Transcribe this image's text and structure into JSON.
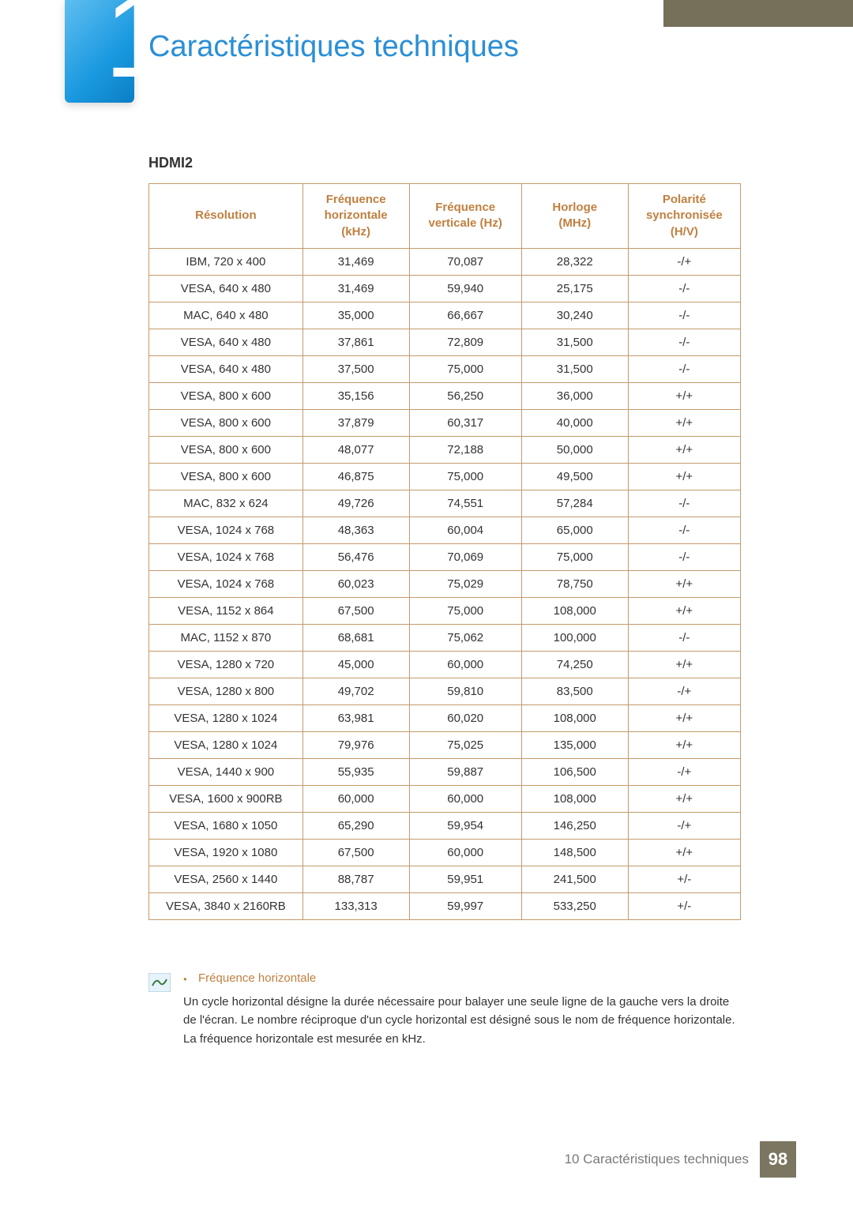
{
  "chapter": {
    "number": "10",
    "title": "Caractéristiques techniques"
  },
  "section": {
    "label": "HDMI2"
  },
  "table": {
    "type": "table",
    "header_color": "#c08040",
    "border_color": "#c59a6a",
    "columns": [
      "Résolution",
      "Fréquence horizontale (kHz)",
      "Fréquence verticale (Hz)",
      "Horloge (MHz)",
      "Polarité synchronisée (H/V)"
    ],
    "rows": [
      [
        "IBM, 720 x 400",
        "31,469",
        "70,087",
        "28,322",
        "-/+"
      ],
      [
        "VESA, 640 x 480",
        "31,469",
        "59,940",
        "25,175",
        "-/-"
      ],
      [
        "MAC, 640 x 480",
        "35,000",
        "66,667",
        "30,240",
        "-/-"
      ],
      [
        "VESA, 640 x 480",
        "37,861",
        "72,809",
        "31,500",
        "-/-"
      ],
      [
        "VESA, 640 x 480",
        "37,500",
        "75,000",
        "31,500",
        "-/-"
      ],
      [
        "VESA, 800 x 600",
        "35,156",
        "56,250",
        "36,000",
        "+/+"
      ],
      [
        "VESA, 800 x 600",
        "37,879",
        "60,317",
        "40,000",
        "+/+"
      ],
      [
        "VESA, 800 x 600",
        "48,077",
        "72,188",
        "50,000",
        "+/+"
      ],
      [
        "VESA, 800 x 600",
        "46,875",
        "75,000",
        "49,500",
        "+/+"
      ],
      [
        "MAC, 832 x 624",
        "49,726",
        "74,551",
        "57,284",
        "-/-"
      ],
      [
        "VESA, 1024 x 768",
        "48,363",
        "60,004",
        "65,000",
        "-/-"
      ],
      [
        "VESA, 1024 x 768",
        "56,476",
        "70,069",
        "75,000",
        "-/-"
      ],
      [
        "VESA, 1024 x 768",
        "60,023",
        "75,029",
        "78,750",
        "+/+"
      ],
      [
        "VESA, 1152 x 864",
        "67,500",
        "75,000",
        "108,000",
        "+/+"
      ],
      [
        "MAC, 1152 x 870",
        "68,681",
        "75,062",
        "100,000",
        "-/-"
      ],
      [
        "VESA, 1280 x 720",
        "45,000",
        "60,000",
        "74,250",
        "+/+"
      ],
      [
        "VESA, 1280 x 800",
        "49,702",
        "59,810",
        "83,500",
        "-/+"
      ],
      [
        "VESA, 1280 x 1024",
        "63,981",
        "60,020",
        "108,000",
        "+/+"
      ],
      [
        "VESA, 1280 x 1024",
        "79,976",
        "75,025",
        "135,000",
        "+/+"
      ],
      [
        "VESA, 1440 x 900",
        "55,935",
        "59,887",
        "106,500",
        "-/+"
      ],
      [
        "VESA, 1600 x 900RB",
        "60,000",
        "60,000",
        "108,000",
        "+/+"
      ],
      [
        "VESA, 1680 x 1050",
        "65,290",
        "59,954",
        "146,250",
        "-/+"
      ],
      [
        "VESA, 1920 x 1080",
        "67,500",
        "60,000",
        "148,500",
        "+/+"
      ],
      [
        "VESA, 2560 x 1440",
        "88,787",
        "59,951",
        "241,500",
        "+/-"
      ],
      [
        "VESA, 3840 x 2160RB",
        "133,313",
        "59,997",
        "533,250",
        "+/-"
      ]
    ]
  },
  "note": {
    "bullet_title": "Fréquence horizontale",
    "body": "Un cycle horizontal désigne la durée nécessaire pour balayer une seule ligne de la gauche vers la droite de l'écran. Le nombre réciproque d'un cycle horizontal est désigné sous le nom de fréquence horizontale. La fréquence horizontale est mesurée en kHz."
  },
  "footer": {
    "text": "10 Caractéristiques techniques",
    "page": "98",
    "badge_bg": "#7b7660"
  },
  "colors": {
    "title": "#2a8fd6",
    "topbar": "#75705a"
  }
}
